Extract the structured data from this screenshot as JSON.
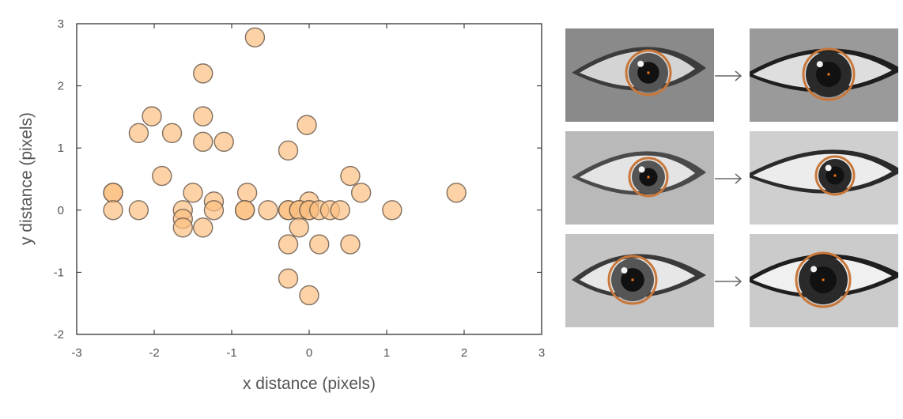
{
  "chart_data": {
    "type": "scatter",
    "title": "",
    "xlabel": "x distance (pixels)",
    "ylabel": "y distance (pixels)",
    "xlim": [
      -3,
      3
    ],
    "ylim": [
      -2,
      3
    ],
    "xticks": [
      "-3",
      "-2",
      "-1",
      "0",
      "1",
      "2",
      "3"
    ],
    "yticks": [
      "-2",
      "-1",
      "0",
      "1",
      "2",
      "3"
    ],
    "grid": false,
    "marker_color": "#fbbf80",
    "marker_edge_color": "#6b5a4c",
    "points": [
      {
        "x": -0.7,
        "y": 2.78
      },
      {
        "x": -1.37,
        "y": 2.2
      },
      {
        "x": -2.03,
        "y": 1.51
      },
      {
        "x": -1.37,
        "y": 1.51
      },
      {
        "x": -0.03,
        "y": 1.37
      },
      {
        "x": -2.2,
        "y": 1.24
      },
      {
        "x": -1.77,
        "y": 1.24
      },
      {
        "x": -1.37,
        "y": 1.1
      },
      {
        "x": -1.1,
        "y": 1.1
      },
      {
        "x": -0.27,
        "y": 0.96
      },
      {
        "x": -1.9,
        "y": 0.55
      },
      {
        "x": 0.53,
        "y": 0.55
      },
      {
        "x": -2.53,
        "y": 0.28
      },
      {
        "x": -2.53,
        "y": 0.28
      },
      {
        "x": -1.5,
        "y": 0.28
      },
      {
        "x": -0.8,
        "y": 0.28
      },
      {
        "x": 0.67,
        "y": 0.28
      },
      {
        "x": 1.9,
        "y": 0.28
      },
      {
        "x": -1.23,
        "y": 0.14
      },
      {
        "x": 0.0,
        "y": 0.14
      },
      {
        "x": -2.53,
        "y": 0.0
      },
      {
        "x": -2.2,
        "y": 0.0
      },
      {
        "x": -1.63,
        "y": 0.0
      },
      {
        "x": -1.23,
        "y": 0.0
      },
      {
        "x": -0.83,
        "y": 0.0
      },
      {
        "x": -0.83,
        "y": 0.0
      },
      {
        "x": -0.53,
        "y": 0.0
      },
      {
        "x": -0.27,
        "y": 0.0
      },
      {
        "x": -0.27,
        "y": 0.0
      },
      {
        "x": -0.13,
        "y": 0.0
      },
      {
        "x": -0.13,
        "y": 0.0
      },
      {
        "x": 0.0,
        "y": 0.0
      },
      {
        "x": 0.0,
        "y": 0.0
      },
      {
        "x": 0.13,
        "y": 0.0
      },
      {
        "x": 0.27,
        "y": 0.0
      },
      {
        "x": 0.4,
        "y": 0.0
      },
      {
        "x": 1.07,
        "y": 0.0
      },
      {
        "x": -1.63,
        "y": -0.14
      },
      {
        "x": -1.63,
        "y": -0.28
      },
      {
        "x": -1.37,
        "y": -0.28
      },
      {
        "x": -0.13,
        "y": -0.28
      },
      {
        "x": -0.27,
        "y": -0.55
      },
      {
        "x": 0.13,
        "y": -0.55
      },
      {
        "x": 0.53,
        "y": -0.55
      },
      {
        "x": -0.27,
        "y": -1.1
      },
      {
        "x": 0.0,
        "y": -1.37
      }
    ]
  },
  "eye_panels": {
    "ring_color": "#c8773a",
    "center_color": "#e8741c",
    "arrow_color": "#666666",
    "rows": [
      {
        "left": "eye-image",
        "right": "eye-image-zoomed"
      },
      {
        "left": "eye-image",
        "right": "eye-image-zoomed"
      },
      {
        "left": "eye-image",
        "right": "eye-image-zoomed"
      }
    ]
  }
}
